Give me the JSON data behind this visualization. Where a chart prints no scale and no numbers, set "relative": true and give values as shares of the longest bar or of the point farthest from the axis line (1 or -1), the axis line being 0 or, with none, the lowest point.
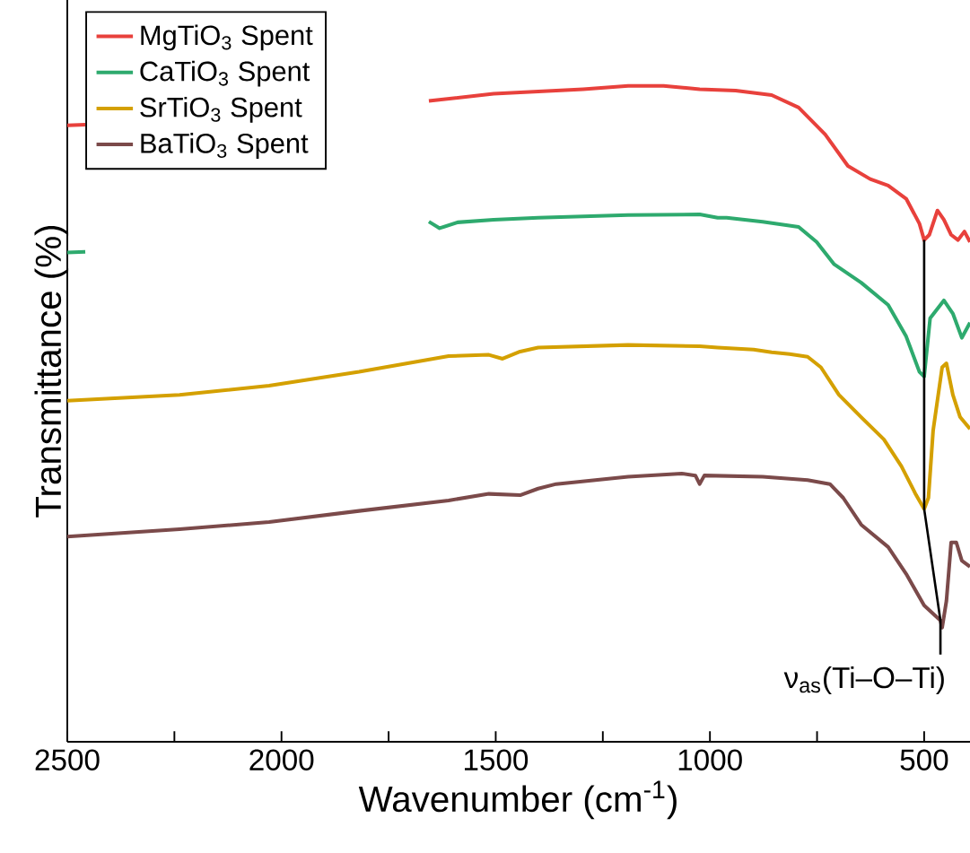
{
  "chart_data": {
    "type": "line",
    "xlabel": "Wavenumber (cm$^{-1}$)",
    "ylabel": "Transmittance (%)",
    "relative": true,
    "marker": "none",
    "legend": "top left",
    "xlim": [
      2500,
      393
    ],
    "xticks": [
      2500,
      {
        "value": 2250,
        "label": null
      },
      2000,
      {
        "value": 1750,
        "label": null
      },
      1500,
      {
        "value": 1250,
        "label": null
      },
      1000,
      {
        "value": 750,
        "label": null
      },
      500
    ],
    "annotations": [
      {
        "text": "ν$_{as}$(Ti–O–Ti)",
        "x": 462,
        "y": 0.133
      }
    ],
    "series": [
      {
        "name": "MgTiO$_{3}$ Spent",
        "color": "#e8413c",
        "x": [
          2500,
          2458,
          2000,
          1656,
          1505,
          1296,
          1191,
          1108,
          1024,
          940,
          856,
          793,
          731,
          678,
          626,
          584,
          542,
          511,
          500,
          488,
          469,
          454,
          437,
          421,
          406,
          393
        ],
        "values": [
          0.94,
          0.941,
          null,
          0.977,
          0.988,
          0.995,
          1,
          1,
          0.995,
          0.993,
          0.986,
          0.967,
          0.926,
          0.878,
          0.858,
          0.848,
          0.828,
          0.79,
          0.765,
          0.773,
          0.81,
          0.796,
          0.773,
          0.765,
          0.778,
          0.762
        ]
      },
      {
        "name": "CaTiO$_{3}$ Spent",
        "color": "#2eaa6e",
        "x": [
          2500,
          2458,
          2000,
          1656,
          1631,
          1589,
          1505,
          1401,
          1191,
          1024,
          982,
          961,
          877,
          793,
          751,
          710,
          647,
          584,
          542,
          511,
          500,
          486,
          454,
          433,
          412,
          393
        ],
        "values": [
          0.746,
          0.747,
          null,
          0.793,
          0.783,
          0.792,
          0.796,
          0.799,
          0.803,
          0.804,
          0.799,
          0.799,
          0.793,
          0.785,
          0.762,
          0.728,
          0.7,
          0.666,
          0.618,
          0.564,
          0.557,
          0.646,
          0.673,
          0.653,
          0.616,
          0.639
        ]
      },
      {
        "name": "SrTiO$_{3}$ Spent",
        "color": "#d4a000",
        "x": [
          2500,
          2238,
          2029,
          1819,
          1610,
          1516,
          1484,
          1443,
          1401,
          1191,
          1024,
          982,
          898,
          856,
          814,
          772,
          741,
          699,
          647,
          594,
          553,
          521,
          500,
          490,
          479,
          458,
          448,
          433,
          416,
          393
        ],
        "values": [
          0.52,
          0.529,
          0.543,
          0.564,
          0.588,
          0.59,
          0.584,
          0.595,
          0.601,
          0.605,
          0.603,
          0.601,
          0.598,
          0.594,
          0.591,
          0.587,
          0.571,
          0.529,
          0.495,
          0.461,
          0.42,
          0.379,
          0.355,
          0.372,
          0.475,
          0.571,
          0.577,
          0.529,
          0.495,
          0.477
        ]
      },
      {
        "name": "BaTiO$_{3}$ Spent",
        "color": "#7b4a4a",
        "x": [
          2500,
          2238,
          2029,
          1819,
          1610,
          1516,
          1443,
          1401,
          1359,
          1191,
          1066,
          1034,
          1024,
          1013,
          877,
          772,
          720,
          689,
          647,
          584,
          542,
          500,
          462,
          458,
          448,
          437,
          425,
          412,
          393
        ],
        "values": [
          0.313,
          0.324,
          0.335,
          0.352,
          0.368,
          0.378,
          0.376,
          0.386,
          0.393,
          0.404,
          0.409,
          0.406,
          0.393,
          0.406,
          0.404,
          0.399,
          0.393,
          0.372,
          0.331,
          0.297,
          0.256,
          0.208,
          0.185,
          0.174,
          0.215,
          0.304,
          0.304,
          0.276,
          0.267
        ]
      },
      {
        "color": "#000000",
        "x": [
          500,
          500,
          462,
          462
        ],
        "values": [
          0.765,
          0.355,
          0.185,
          0.133
        ]
      }
    ]
  }
}
